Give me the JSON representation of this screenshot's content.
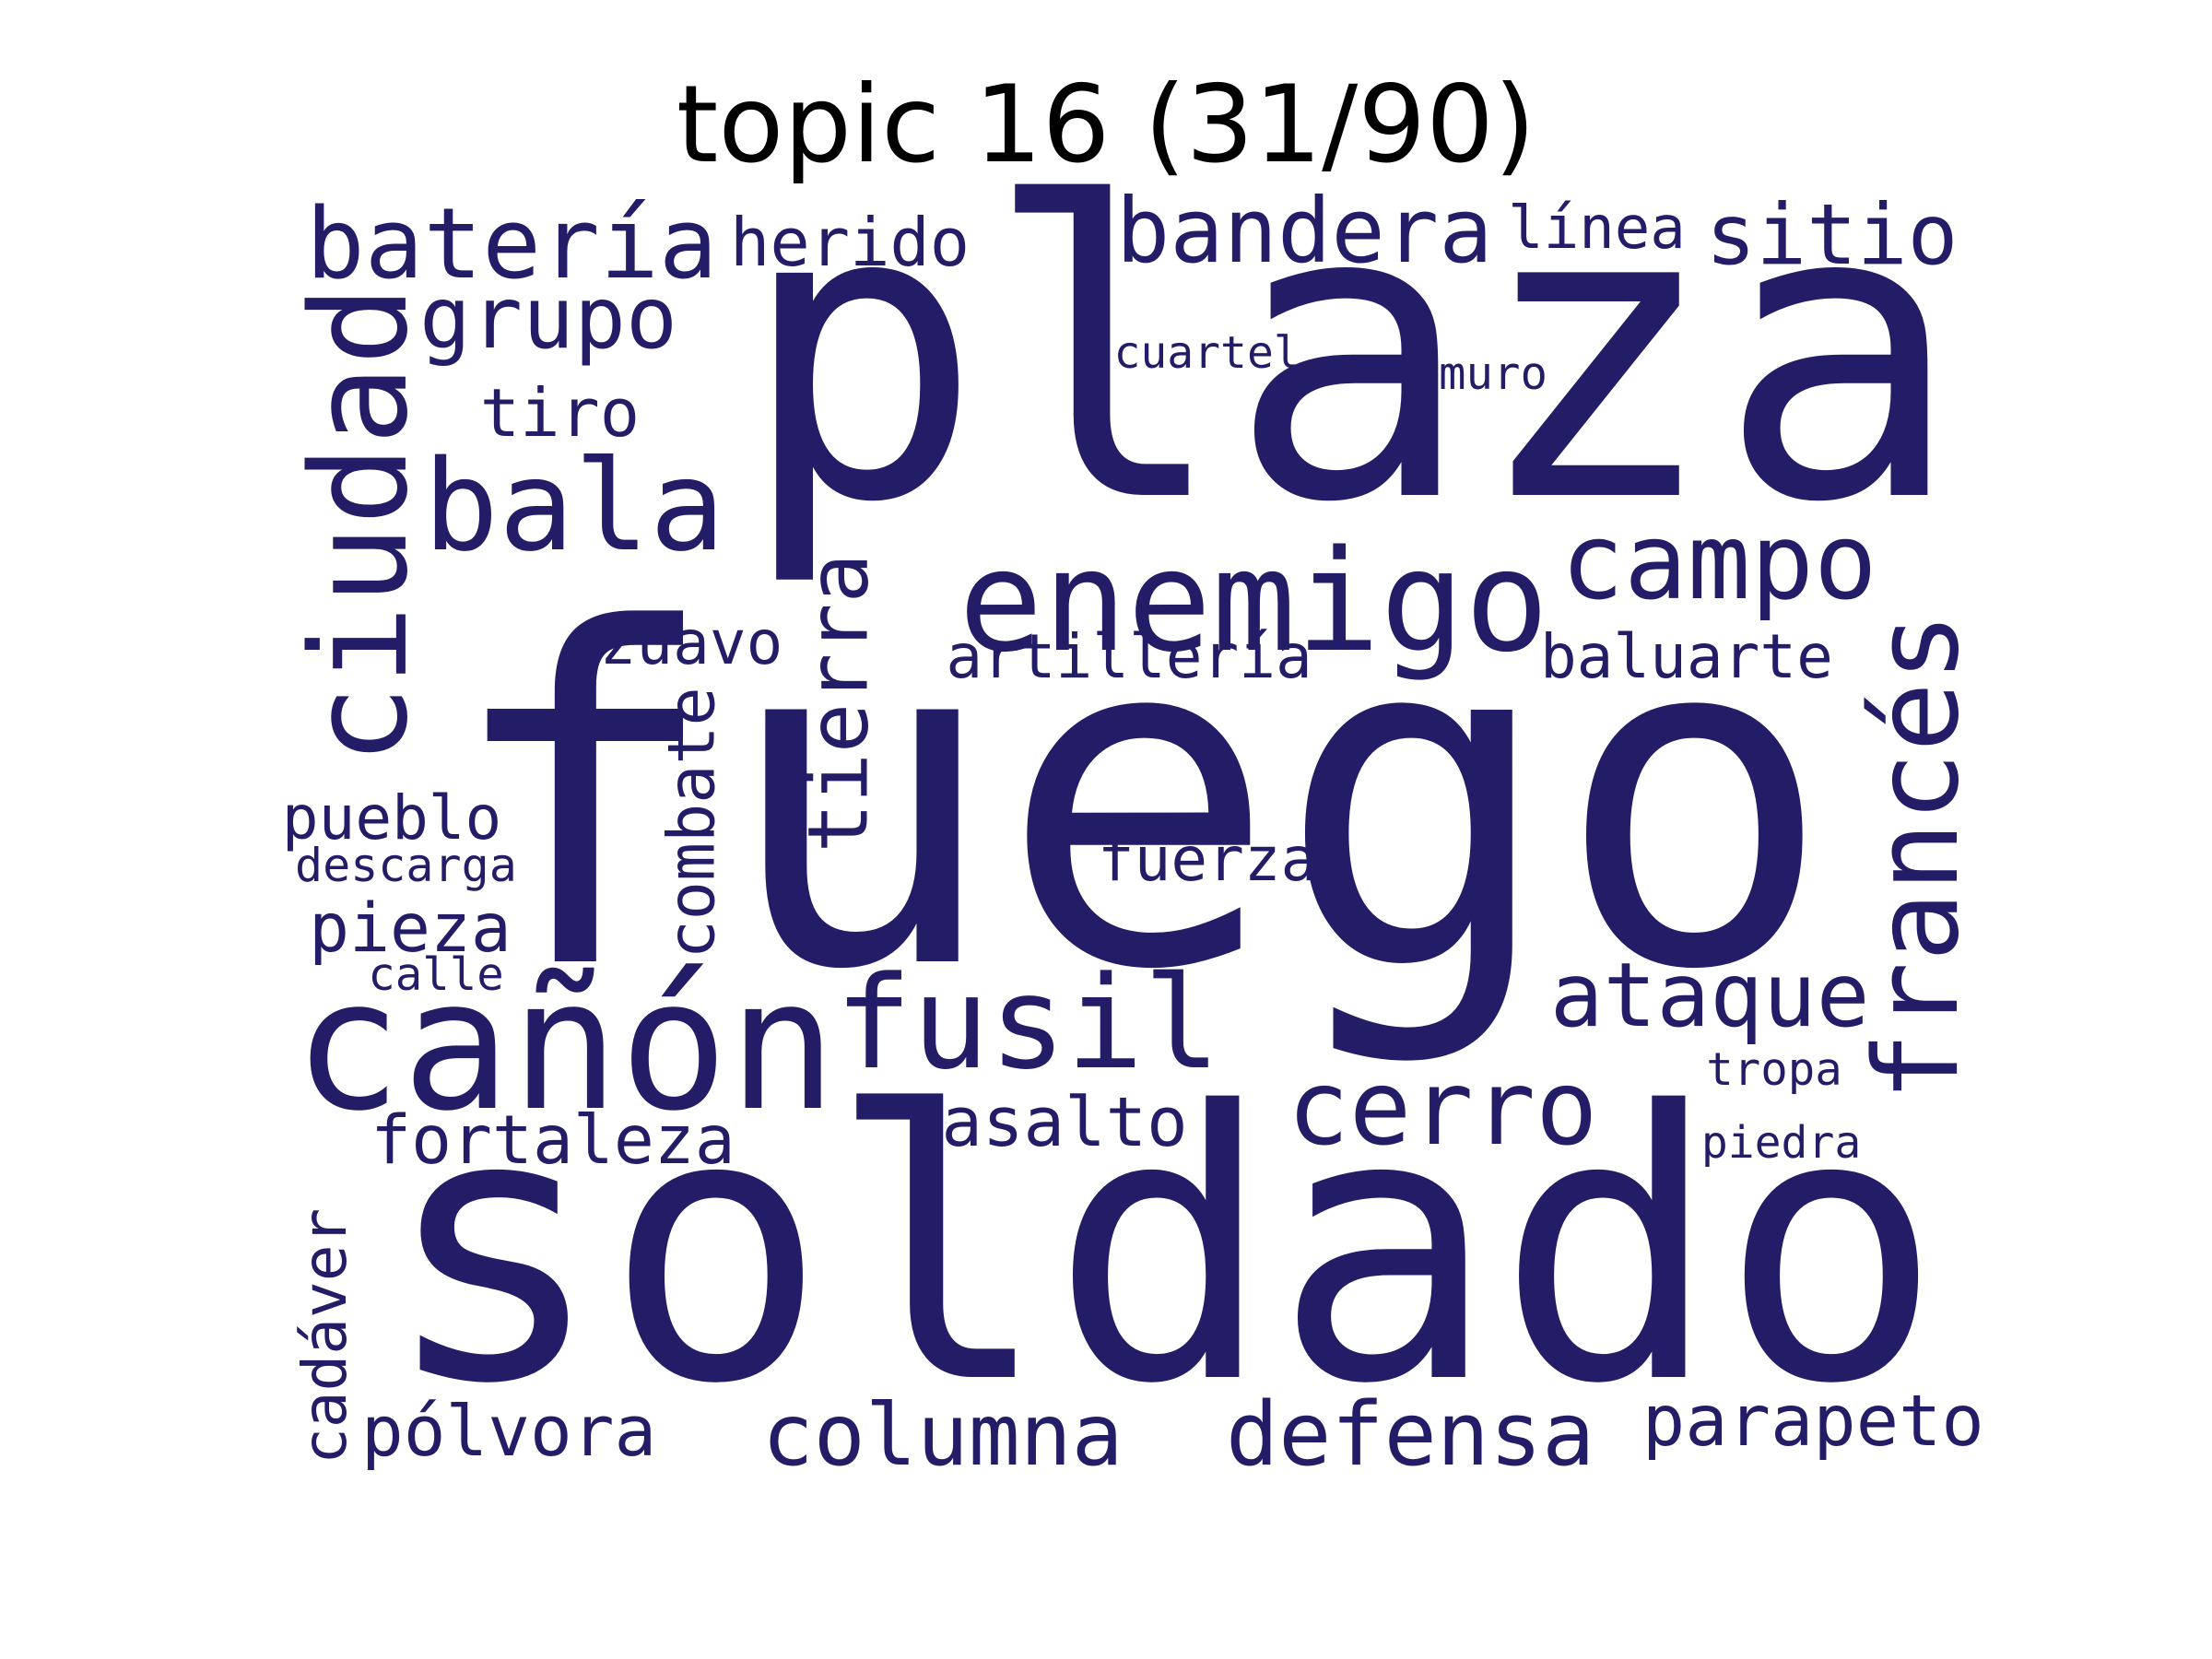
{
  "title": "topic 16 (31/90)",
  "word_color": "#221d66",
  "words": [
    {
      "text": "plaza",
      "orientation": "horizontal"
    },
    {
      "text": "fuego",
      "orientation": "horizontal"
    },
    {
      "text": "soldado",
      "orientation": "horizontal"
    },
    {
      "text": "cañón",
      "orientation": "horizontal"
    },
    {
      "text": "enemigo",
      "orientation": "horizontal"
    },
    {
      "text": "fusil",
      "orientation": "horizontal"
    },
    {
      "text": "francés",
      "orientation": "vertical"
    },
    {
      "text": "ciudad",
      "orientation": "vertical"
    },
    {
      "text": "bala",
      "orientation": "horizontal"
    },
    {
      "text": "batería",
      "orientation": "horizontal"
    },
    {
      "text": "bandera",
      "orientation": "horizontal"
    },
    {
      "text": "campo",
      "orientation": "horizontal"
    },
    {
      "text": "cerro",
      "orientation": "horizontal"
    },
    {
      "text": "ataque",
      "orientation": "horizontal"
    },
    {
      "text": "sitio",
      "orientation": "horizontal"
    },
    {
      "text": "grupo",
      "orientation": "horizontal"
    },
    {
      "text": "tierra",
      "orientation": "vertical"
    },
    {
      "text": "defensa",
      "orientation": "horizontal"
    },
    {
      "text": "columna",
      "orientation": "horizontal"
    },
    {
      "text": "fortaleza",
      "orientation": "horizontal"
    },
    {
      "text": "parapeto",
      "orientation": "horizontal"
    },
    {
      "text": "pólvora",
      "orientation": "horizontal"
    },
    {
      "text": "herido",
      "orientation": "horizontal"
    },
    {
      "text": "asalto",
      "orientation": "horizontal"
    },
    {
      "text": "pieza",
      "orientation": "horizontal"
    },
    {
      "text": "artillería",
      "orientation": "horizontal"
    },
    {
      "text": "tiro",
      "orientation": "horizontal"
    },
    {
      "text": "combate",
      "orientation": "vertical"
    },
    {
      "text": "pueblo",
      "orientation": "horizontal"
    },
    {
      "text": "baluarte",
      "orientation": "horizontal"
    },
    {
      "text": "fuerza",
      "orientation": "horizontal"
    },
    {
      "text": "zuavo",
      "orientation": "horizontal"
    },
    {
      "text": "línea",
      "orientation": "horizontal"
    },
    {
      "text": "cadáver",
      "orientation": "vertical"
    },
    {
      "text": "cuartel",
      "orientation": "horizontal"
    },
    {
      "text": "muro",
      "orientation": "horizontal"
    },
    {
      "text": "descarga",
      "orientation": "horizontal"
    },
    {
      "text": "calle",
      "orientation": "horizontal"
    },
    {
      "text": "tropa",
      "orientation": "horizontal"
    },
    {
      "text": "piedra",
      "orientation": "horizontal"
    }
  ]
}
